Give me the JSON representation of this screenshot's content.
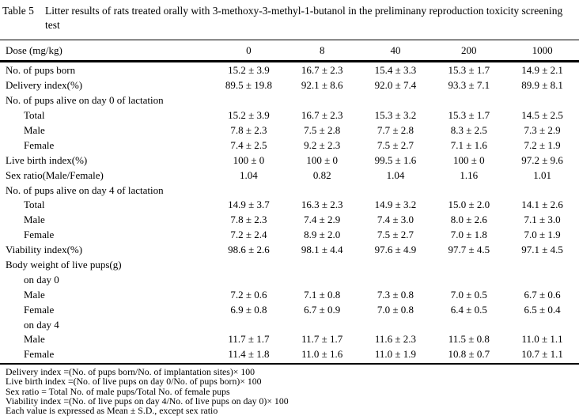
{
  "caption": {
    "label": "Table 5",
    "text_line1": "Litter results of rats treated orally with 3-methoxy-3-methyl-1-butanol in the preliminany reproduction",
    "text_line2": "toxicity screening test",
    "text": "Litter results of rats treated orally with 3-methoxy-3-methyl-1-butanol in the preliminany reproduction toxicity screening test"
  },
  "table": {
    "header": {
      "label": "Dose (mg/kg)",
      "doses": [
        "0",
        "8",
        "40",
        "200",
        "1000"
      ]
    },
    "rows": [
      {
        "label": "No. of pups born",
        "indent": false,
        "values": [
          "15.2 ± 3.9",
          "16.7 ± 2.3",
          "15.4 ± 3.3",
          "15.3 ± 1.7",
          "14.9 ± 2.1"
        ]
      },
      {
        "label": "Delivery index(%)",
        "indent": false,
        "values": [
          "89.5 ± 19.8",
          "92.1 ± 8.6",
          "92.0 ± 7.4",
          "93.3 ± 7.1",
          "89.9 ± 8.1"
        ]
      },
      {
        "label": "No. of pups alive on day 0 of lactation",
        "indent": false,
        "values": [
          "",
          "",
          "",
          "",
          ""
        ]
      },
      {
        "label": "Total",
        "indent": true,
        "values": [
          "15.2 ± 3.9",
          "16.7 ± 2.3",
          "15.3 ± 3.2",
          "15.3 ± 1.7",
          "14.5 ± 2.5"
        ]
      },
      {
        "label": "Male",
        "indent": true,
        "values": [
          "7.8 ± 2.3",
          "7.5 ± 2.8",
          "7.7 ± 2.8",
          "8.3 ± 2.5",
          "7.3 ± 2.9"
        ]
      },
      {
        "label": "Female",
        "indent": true,
        "values": [
          "7.4 ± 2.5",
          "9.2 ± 2.3",
          "7.5 ± 2.7",
          "7.1 ± 1.6",
          "7.2 ± 1.9"
        ]
      },
      {
        "label": "Live birth index(%)",
        "indent": false,
        "values": [
          "100 ± 0",
          "100 ± 0",
          "99.5 ± 1.6",
          "100 ± 0",
          "97.2 ± 9.6"
        ]
      },
      {
        "label": "Sex ratio(Male/Female)",
        "indent": false,
        "values": [
          "1.04",
          "0.82",
          "1.04",
          "1.16",
          "1.01"
        ]
      },
      {
        "label": "No. of pups alive on day 4 of lactation",
        "indent": false,
        "values": [
          "",
          "",
          "",
          "",
          ""
        ]
      },
      {
        "label": "Total",
        "indent": true,
        "values": [
          "14.9 ± 3.7",
          "16.3 ± 2.3",
          "14.9 ± 3.2",
          "15.0 ± 2.0",
          "14.1 ± 2.6"
        ]
      },
      {
        "label": "Male",
        "indent": true,
        "values": [
          "7.8 ± 2.3",
          "7.4 ± 2.9",
          "7.4 ± 3.0",
          "8.0 ± 2.6",
          "7.1 ± 3.0"
        ]
      },
      {
        "label": "Female",
        "indent": true,
        "values": [
          "7.2 ± 2.4",
          "8.9 ± 2.0",
          "7.5 ± 2.7",
          "7.0 ± 1.8",
          "7.0 ± 1.9"
        ]
      },
      {
        "label": "Viability index(%)",
        "indent": false,
        "values": [
          "98.6 ± 2.6",
          "98.1 ± 4.4",
          "97.6 ± 4.9",
          "97.7 ± 4.5",
          "97.1 ± 4.5"
        ]
      },
      {
        "label": "Body weight of live pups(g)",
        "indent": false,
        "values": [
          "",
          "",
          "",
          "",
          ""
        ]
      },
      {
        "label": "on day 0",
        "indent": true,
        "values": [
          "",
          "",
          "",
          "",
          ""
        ]
      },
      {
        "label": "Male",
        "indent": true,
        "values": [
          "7.2 ± 0.6",
          "7.1 ± 0.8",
          "7.3 ± 0.8",
          "7.0 ± 0.5",
          "6.7 ± 0.6"
        ]
      },
      {
        "label": "Female",
        "indent": true,
        "values": [
          "6.9 ± 0.8",
          "6.7 ± 0.9",
          "7.0 ± 0.8",
          "6.4 ± 0.5",
          "6.5 ± 0.4"
        ]
      },
      {
        "label": "on day 4",
        "indent": true,
        "values": [
          "",
          "",
          "",
          "",
          ""
        ]
      },
      {
        "label": "Male",
        "indent": true,
        "values": [
          "11.7 ± 1.7",
          "11.7 ± 1.7",
          "11.6 ± 2.3",
          "11.5 ± 0.8",
          "11.0 ± 1.1"
        ]
      },
      {
        "label": "Female",
        "indent": true,
        "values": [
          "11.4 ± 1.8",
          "11.0 ± 1.6",
          "11.0 ± 1.9",
          "10.8 ± 0.7",
          "10.7 ± 1.1"
        ]
      }
    ]
  },
  "footnotes": [
    "Delivery index =(No. of pups born/No. of implantation sites)× 100",
    "Live birth index =(No. of live pups on day 0/No. of pups born)× 100",
    "Sex ratio = Total No. of male pups/Total No. of female pups",
    "Viability index =(No. of live pups on day 4/No. of live pups on day 0)× 100",
    "Each value is expressed as Mean ± S.D., except sex ratio"
  ]
}
